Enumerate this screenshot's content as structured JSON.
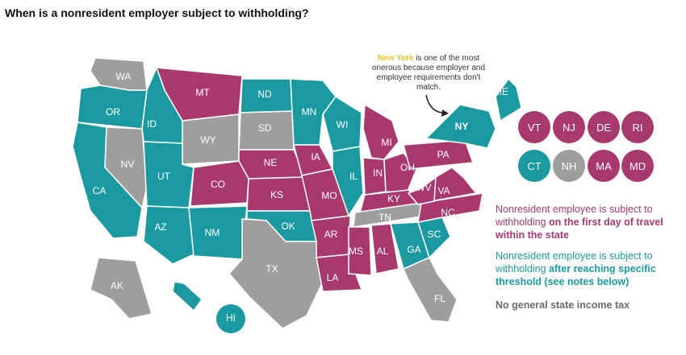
{
  "title": "When is a nonresident employer subject to withholding?",
  "colors": {
    "first_day": "#a8396f",
    "threshold": "#1a9aa0",
    "no_tax": "#9e9e9e",
    "ny_highlight": "#e8c22f"
  },
  "callout": {
    "highlight": "New York",
    "text": "is one of the most onerous because employer and employee requirements don't match."
  },
  "badges": [
    {
      "label": "VT",
      "category": "first_day"
    },
    {
      "label": "NJ",
      "category": "first_day"
    },
    {
      "label": "DE",
      "category": "first_day"
    },
    {
      "label": "RI",
      "category": "first_day"
    },
    {
      "label": "CT",
      "category": "threshold"
    },
    {
      "label": "NH",
      "category": "no_tax"
    },
    {
      "label": "MA",
      "category": "first_day"
    },
    {
      "label": "MD",
      "category": "first_day"
    }
  ],
  "legend": {
    "first_day": {
      "text": "Nonresident employee is subject to withholding",
      "bold": "on the first day of travel within the state"
    },
    "threshold": {
      "text": "Nonresident employee is subject to withholding",
      "bold": "after reaching specific threshold (see notes below)"
    },
    "no_tax": {
      "text": "No general state income tax"
    }
  },
  "states": [
    {
      "label": "WA",
      "category": "no_tax"
    },
    {
      "label": "OR",
      "category": "threshold"
    },
    {
      "label": "CA",
      "category": "threshold"
    },
    {
      "label": "NV",
      "category": "no_tax"
    },
    {
      "label": "ID",
      "category": "threshold"
    },
    {
      "label": "MT",
      "category": "first_day"
    },
    {
      "label": "WY",
      "category": "no_tax"
    },
    {
      "label": "UT",
      "category": "threshold"
    },
    {
      "label": "AZ",
      "category": "threshold"
    },
    {
      "label": "CO",
      "category": "first_day"
    },
    {
      "label": "NM",
      "category": "threshold"
    },
    {
      "label": "ND",
      "category": "threshold"
    },
    {
      "label": "SD",
      "category": "no_tax"
    },
    {
      "label": "NE",
      "category": "first_day"
    },
    {
      "label": "KS",
      "category": "first_day"
    },
    {
      "label": "OK",
      "category": "threshold"
    },
    {
      "label": "TX",
      "category": "no_tax"
    },
    {
      "label": "MN",
      "category": "threshold"
    },
    {
      "label": "IA",
      "category": "first_day"
    },
    {
      "label": "MO",
      "category": "first_day"
    },
    {
      "label": "AR",
      "category": "first_day"
    },
    {
      "label": "LA",
      "category": "first_day"
    },
    {
      "label": "WI",
      "category": "threshold"
    },
    {
      "label": "IL",
      "category": "threshold"
    },
    {
      "label": "MI",
      "category": "first_day"
    },
    {
      "label": "IN",
      "category": "first_day"
    },
    {
      "label": "OH",
      "category": "first_day"
    },
    {
      "label": "KY",
      "category": "first_day"
    },
    {
      "label": "TN",
      "category": "no_tax"
    },
    {
      "label": "MS",
      "category": "first_day"
    },
    {
      "label": "AL",
      "category": "first_day"
    },
    {
      "label": "GA",
      "category": "threshold"
    },
    {
      "label": "FL",
      "category": "no_tax"
    },
    {
      "label": "SC",
      "category": "threshold"
    },
    {
      "label": "NC",
      "category": "first_day"
    },
    {
      "label": "VA",
      "category": "first_day"
    },
    {
      "label": "WV",
      "category": "first_day"
    },
    {
      "label": "PA",
      "category": "first_day"
    },
    {
      "label": "NY",
      "category": "threshold"
    },
    {
      "label": "ME",
      "category": "threshold"
    },
    {
      "label": "AK",
      "category": "no_tax"
    },
    {
      "label": "HI",
      "category": "threshold"
    }
  ]
}
